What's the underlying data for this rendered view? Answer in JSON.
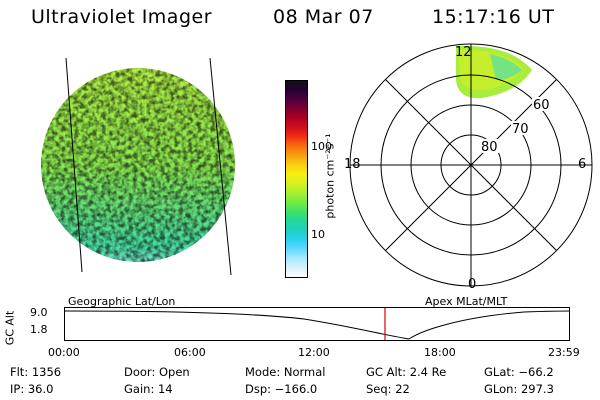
{
  "header": {
    "title": "Ultraviolet Imager",
    "date": "08 Mar 07",
    "time": "15:17:16 UT"
  },
  "colorbar": {
    "unit_label": "photon cm⁻²s⁻¹",
    "ticks": [
      "100",
      "10"
    ],
    "colors": [
      "#ffffff",
      "#d8f2ff",
      "#a8e8ff",
      "#60d8ff",
      "#2ad0ee",
      "#20d0c0",
      "#20d89a",
      "#40e068",
      "#70ee40",
      "#a8f030",
      "#d8f020",
      "#f8f010",
      "#f8d010",
      "#f8a010",
      "#f87010",
      "#f03010",
      "#d01020",
      "#b00020",
      "#800030",
      "#500040",
      "#280030",
      "#101020"
    ]
  },
  "polar": {
    "lat_labels": [
      "60",
      "70",
      "80"
    ],
    "time_labels": {
      "top": "12",
      "left": "18",
      "right": "6",
      "bottom": "0"
    }
  },
  "panels": {
    "left_label": "Geographic Lat/Lon",
    "right_label": "Apex MLat/MLT"
  },
  "alt_plot": {
    "axis_label": "GC Alt",
    "y_ticks": [
      "9.0",
      "1.8"
    ],
    "x_ticks": [
      "00:00",
      "06:00",
      "12:00",
      "18:00",
      "23:59"
    ],
    "marker_color": "#dd0000"
  },
  "info": {
    "row1": [
      "Flt: 1356",
      "Door: Open",
      "Mode: Normal",
      "GC Alt: 2.4 Re",
      "GLat: −66.2"
    ],
    "row2": [
      "IP: 36.0",
      "Gain: 14",
      "Dsp: −166.0",
      "Seq: 22",
      "GLon: 297.3"
    ]
  }
}
